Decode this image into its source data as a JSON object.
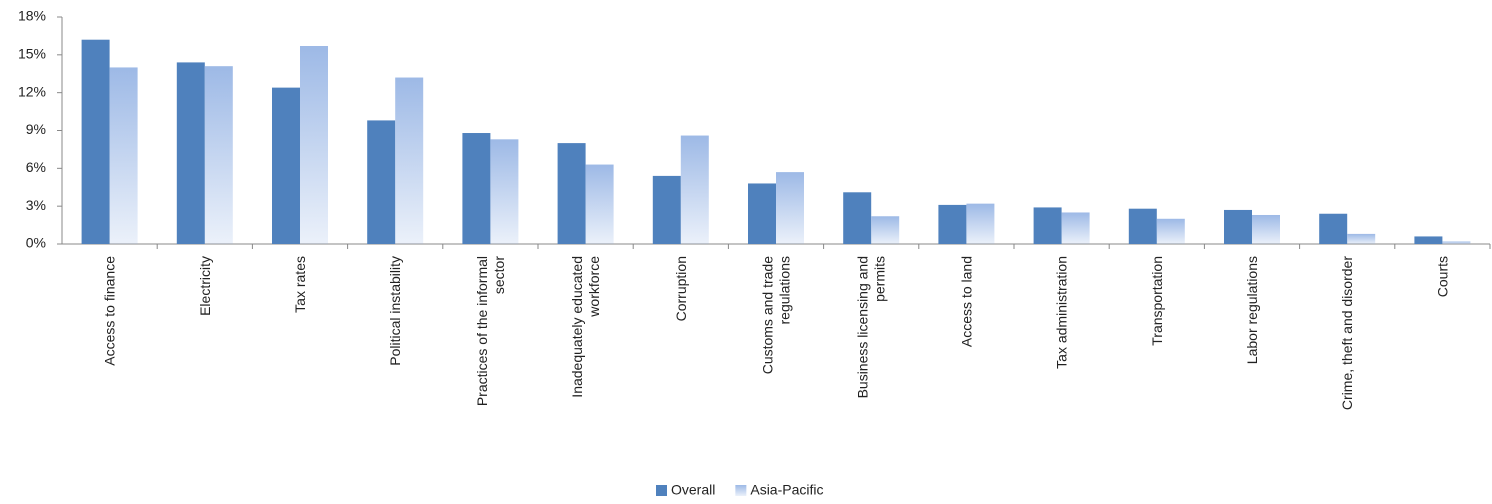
{
  "chart_data": {
    "type": "bar",
    "categories": [
      "Access to finance",
      "Electricity",
      "Tax rates",
      "Political instability",
      "Practices of the informal sector",
      "Inadequately educated workforce",
      "Corruption",
      "Customs and trade regulations",
      "Business licensing and permits",
      "Access to land",
      "Tax administration",
      "Transportation",
      "Labor regulations",
      "Crime, theft and disorder",
      "Courts"
    ],
    "series": [
      {
        "name": "Overall",
        "color": "#4f81bd",
        "values": [
          16.2,
          14.4,
          12.4,
          9.8,
          8.8,
          8.0,
          5.4,
          4.8,
          4.1,
          3.1,
          2.9,
          2.8,
          2.7,
          2.4,
          0.6
        ]
      },
      {
        "name": "Asia-Pacific",
        "color": "#9db9e6",
        "values": [
          14.0,
          14.1,
          15.7,
          13.2,
          8.3,
          6.3,
          8.6,
          5.7,
          2.2,
          3.2,
          2.5,
          2.0,
          2.3,
          0.8,
          0.2
        ]
      }
    ],
    "ylim": [
      0,
      18
    ],
    "yticks": [
      {
        "value": 0,
        "label": "0%"
      },
      {
        "value": 3,
        "label": "3%"
      },
      {
        "value": 6,
        "label": "6%"
      },
      {
        "value": 9,
        "label": "9%"
      },
      {
        "value": 12,
        "label": "12%"
      },
      {
        "value": 15,
        "label": "15%"
      },
      {
        "value": 18,
        "label": "18%"
      }
    ]
  }
}
